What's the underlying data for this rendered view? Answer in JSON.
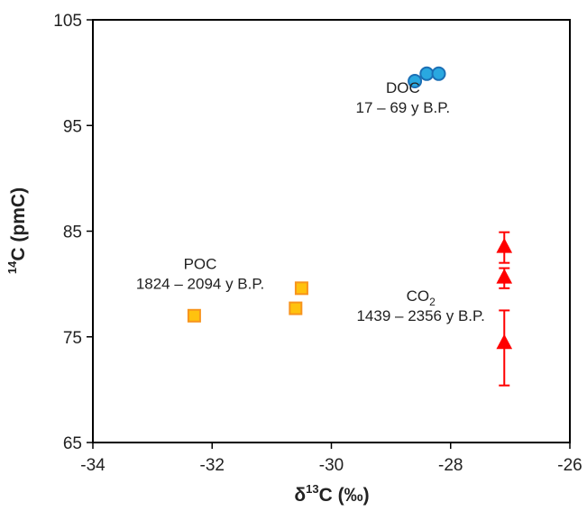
{
  "chart_data": {
    "type": "scatter",
    "title": "",
    "xlabel": {
      "prefix": "δ",
      "sup": "13",
      "main": "C (‰)"
    },
    "ylabel": {
      "sup": "14",
      "main": "C (pmC)"
    },
    "xlim": [
      -34,
      -26
    ],
    "ylim": [
      65,
      105
    ],
    "xticks": [
      -34,
      -32,
      -30,
      -28,
      -26
    ],
    "yticks": [
      65,
      75,
      85,
      95,
      105
    ],
    "xtick_labels": [
      "-34",
      "-32",
      "-30",
      "-28",
      "-26"
    ],
    "ytick_labels": [
      "65",
      "75",
      "85",
      "95",
      "105"
    ],
    "grid": false,
    "legend": "none",
    "series": [
      {
        "group": "DOC",
        "marker": "circle",
        "color": "#29a8e0",
        "stroke": "#1b6fb5",
        "points": [
          {
            "x": -28.6,
            "y": 99.2
          },
          {
            "x": -28.4,
            "y": 99.9
          },
          {
            "x": -28.2,
            "y": 99.9
          }
        ]
      },
      {
        "group": "POC",
        "marker": "square",
        "color": "#ffc20e",
        "stroke": "#f7941d",
        "points": [
          {
            "x": -32.3,
            "y": 77.0
          },
          {
            "x": -30.6,
            "y": 77.7
          },
          {
            "x": -30.5,
            "y": 79.6
          }
        ]
      },
      {
        "group": "CO2",
        "marker": "triangle",
        "color": "#ff0000",
        "stroke": "#ff0000",
        "points": [
          {
            "x": -27.1,
            "y": 83.5,
            "err_lo": 82.0,
            "err_hi": 84.9
          },
          {
            "x": -27.1,
            "y": 80.6,
            "err_lo": 79.6,
            "err_hi": 81.5
          },
          {
            "x": -27.1,
            "y": 74.4,
            "err_lo": 70.4,
            "err_hi": 77.5
          }
        ]
      }
    ],
    "annotations": [
      {
        "id": "doc",
        "line1": "DOC",
        "line2": "17 – 69 y B.P.",
        "x": -28.8,
        "y": 98.1
      },
      {
        "id": "poc",
        "line1": "POC",
        "line2": "1824 – 2094 y B.P.",
        "x": -32.2,
        "y": 81.4
      },
      {
        "id": "co2",
        "line1_main": "CO",
        "line1_sub": "2",
        "line2": "1439 – 2356 y B.P.",
        "x": -28.5,
        "y": 78.4
      }
    ]
  }
}
